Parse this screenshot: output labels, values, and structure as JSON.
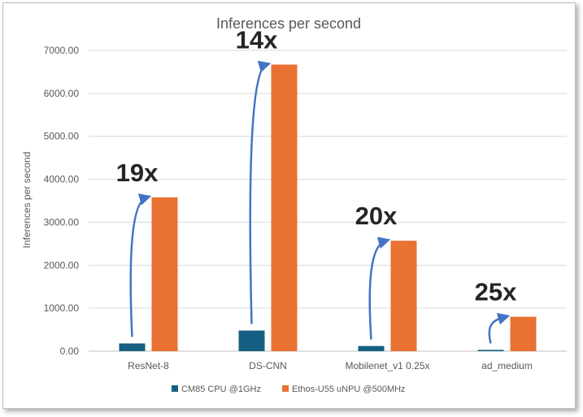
{
  "chart_data": {
    "type": "bar",
    "title": "Inferences per second",
    "xlabel": "",
    "ylabel": "Inferences per second",
    "ylim": [
      0,
      7000
    ],
    "yticks": [
      "0.00",
      "1000.00",
      "2000.00",
      "3000.00",
      "4000.00",
      "5000.00",
      "6000.00",
      "7000.00"
    ],
    "categories": [
      "ResNet-8",
      "DS-CNN",
      "Mobilenet_v1 0.25x",
      "ad_medium"
    ],
    "series": [
      {
        "name": "CM85 CPU @1GHz",
        "color": "#156082",
        "values": [
          180,
          480,
          120,
          30
        ]
      },
      {
        "name": "Ethos-U55 uNPU @500MHz",
        "color": "#E97132",
        "values": [
          3580,
          6670,
          2570,
          800
        ]
      }
    ],
    "annotations": [
      "19x",
      "14x",
      "20x",
      "25x"
    ],
    "arrow_color": "#4472C4",
    "grid": "horizontal",
    "legend": "bottom"
  }
}
